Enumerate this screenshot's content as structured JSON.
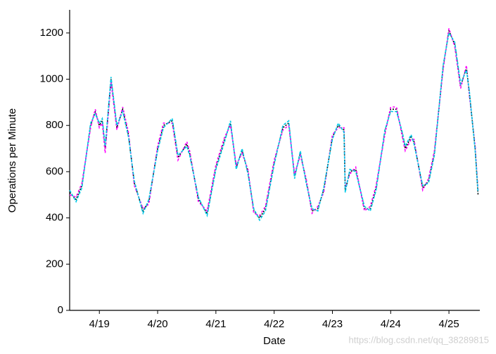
{
  "chart_data": {
    "type": "line",
    "xlabel": "Date",
    "ylabel": "Operations per Minute",
    "watermark": "https://blog.csdn.net/qq_38289815",
    "x": [
      18.49,
      18.6,
      18.7,
      18.85,
      18.93,
      19.0,
      19.05,
      19.1,
      19.2,
      19.3,
      19.4,
      19.5,
      19.6,
      19.75,
      19.85,
      20.0,
      20.1,
      20.25,
      20.35,
      20.5,
      20.55,
      20.7,
      20.85,
      21.0,
      21.15,
      21.25,
      21.35,
      21.45,
      21.55,
      21.65,
      21.75,
      21.85,
      22.0,
      22.15,
      22.25,
      22.35,
      22.45,
      22.55,
      22.65,
      22.75,
      22.85,
      23.0,
      23.1,
      23.2,
      23.22,
      23.3,
      23.4,
      23.55,
      23.65,
      23.75,
      23.9,
      24.0,
      24.1,
      24.2,
      24.25,
      24.35,
      24.4,
      24.55,
      24.65,
      24.75,
      24.9,
      25.0,
      25.1,
      25.2,
      25.3,
      25.35,
      25.45,
      25.5
    ],
    "series": [
      {
        "color": "#000000",
        "values": [
          510,
          480,
          540,
          800,
          860,
          800,
          820,
          700,
          1000,
          790,
          870,
          760,
          550,
          430,
          470,
          700,
          800,
          820,
          660,
          720,
          680,
          480,
          420,
          620,
          740,
          810,
          620,
          690,
          600,
          430,
          400,
          440,
          640,
          790,
          810,
          580,
          680,
          560,
          430,
          440,
          520,
          750,
          800,
          780,
          520,
          600,
          610,
          440,
          440,
          530,
          770,
          870,
          870,
          760,
          700,
          750,
          730,
          530,
          560,
          680,
          1050,
          1210,
          1150,
          970,
          1050,
          940,
          700,
          500
        ]
      },
      {
        "color": "#ff00ff",
        "values": [
          500,
          490,
          550,
          790,
          870,
          790,
          810,
          680,
          990,
          780,
          880,
          770,
          540,
          440,
          460,
          710,
          810,
          810,
          650,
          730,
          690,
          470,
          430,
          630,
          750,
          800,
          630,
          680,
          610,
          420,
          410,
          450,
          650,
          780,
          800,
          590,
          670,
          570,
          420,
          450,
          510,
          760,
          790,
          790,
          530,
          590,
          620,
          430,
          450,
          540,
          760,
          880,
          880,
          750,
          690,
          740,
          740,
          520,
          570,
          690,
          1040,
          1220,
          1140,
          960,
          1060,
          930,
          710,
          520
        ]
      },
      {
        "color": "#00c8e6",
        "values": [
          520,
          470,
          530,
          810,
          850,
          810,
          830,
          710,
          1010,
          800,
          860,
          750,
          560,
          420,
          480,
          690,
          790,
          830,
          670,
          710,
          670,
          490,
          410,
          610,
          730,
          820,
          610,
          700,
          590,
          440,
          390,
          430,
          630,
          800,
          820,
          570,
          690,
          550,
          440,
          430,
          530,
          740,
          810,
          770,
          510,
          610,
          600,
          450,
          430,
          520,
          780,
          860,
          860,
          770,
          710,
          760,
          720,
          540,
          550,
          670,
          1060,
          1200,
          1160,
          980,
          1040,
          950,
          690,
          510
        ]
      }
    ],
    "xlim": [
      18.49,
      25.53
    ],
    "xticks": [
      {
        "value": 19,
        "label": "4/19"
      },
      {
        "value": 20,
        "label": "4/20"
      },
      {
        "value": 21,
        "label": "4/21"
      },
      {
        "value": 22,
        "label": "4/22"
      },
      {
        "value": 23,
        "label": "4/23"
      },
      {
        "value": 24,
        "label": "4/24"
      },
      {
        "value": 25,
        "label": "4/25"
      }
    ],
    "ylim": [
      0,
      1300
    ],
    "yticks": [
      0,
      200,
      400,
      600,
      800,
      1000,
      1200
    ]
  }
}
